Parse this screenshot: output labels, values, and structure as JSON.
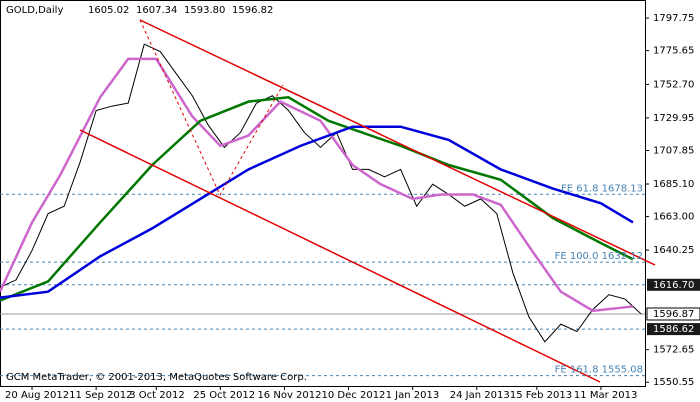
{
  "chart_data": {
    "type": "line",
    "title": "GOLD,Daily",
    "last_bar": [
      {
        "value": 1605.02,
        "label": "1605.02"
      },
      {
        "value": 1607.34,
        "label": "1607.34"
      },
      {
        "value": 1593.8,
        "label": "1593.80"
      },
      {
        "value": 1596.82,
        "label": "1596.82"
      }
    ],
    "footer": "GCM MetaTrader, © 2001-2013, MetaQuotes Software Corp.",
    "xlim": [
      0,
      161
    ],
    "xticks": [
      {
        "value": 8,
        "label": "20 Aug 2012"
      },
      {
        "value": 24,
        "label": "11 Sep 2012"
      },
      {
        "value": 39,
        "label": "3 Oct 2012"
      },
      {
        "value": 55,
        "label": "25 Oct 2012"
      },
      {
        "value": 71,
        "label": "16 Nov 2012"
      },
      {
        "value": 87,
        "label": "10 Dec 2012"
      },
      {
        "value": 103,
        "label": "1 Jan 2013"
      },
      {
        "value": 119,
        "label": "24 Jan 2013"
      },
      {
        "value": 134,
        "label": "15 Feb 2013"
      },
      {
        "value": 150,
        "label": "11 Mar 2013"
      }
    ],
    "ylim": [
      1548,
      1810
    ],
    "yticks": [
      1797.75,
      1775.65,
      {
        "value": 1752.7,
        "label": "1752.70"
      },
      1729.95,
      1707.85,
      {
        "value": 1685.1,
        "label": "1685.10"
      },
      {
        "value": 1663.0,
        "label": "1663.00"
      },
      1640.25,
      1572.65,
      1550.55
    ],
    "levels": [
      {
        "value": 1678.13,
        "label": "FE 61.8 1678.13"
      },
      {
        "value": 1632.12,
        "label": "FE 100.0 1632.12"
      },
      {
        "value": 1555.08,
        "label": "FE 161.8 1555.08"
      }
    ],
    "axis_levels": [
      {
        "value": 1616.7,
        "label": "1616.70"
      },
      1586.62
    ],
    "price_line": 1596.87,
    "series": [
      {
        "color": "#000000",
        "x": [
          0,
          4,
          8,
          12,
          16,
          20,
          24,
          28,
          32,
          36,
          40,
          44,
          48,
          52,
          56,
          60,
          64,
          68,
          72,
          76,
          80,
          84,
          88,
          92,
          96,
          100,
          104,
          108,
          112,
          116,
          120,
          124,
          128,
          132,
          136,
          140,
          144,
          148,
          152,
          156,
          160
        ],
        "values": [
          1615,
          1620,
          1640,
          1665,
          1670,
          1700,
          1735,
          1738,
          1740,
          1780,
          1775,
          1760,
          1745,
          1725,
          1710,
          1720,
          1740,
          1745,
          1735,
          1720,
          1710,
          1720,
          1695,
          1695,
          1690,
          1695,
          1670,
          1685,
          1678,
          1670,
          1675,
          1665,
          1625,
          1595,
          1578,
          1590,
          1585,
          1600,
          1610,
          1607,
          1597
        ]
      },
      {
        "color": "#cc66cc",
        "x": [
          0,
          8,
          15,
          25,
          32,
          39,
          48,
          55,
          62,
          70,
          80,
          88,
          95,
          103,
          110,
          118,
          125,
          133,
          140,
          148,
          158
        ],
        "values": [
          1612,
          1659,
          1691,
          1744,
          1770,
          1770,
          1731,
          1711,
          1718,
          1741,
          1728,
          1698,
          1685,
          1675,
          1678,
          1678,
          1671,
          1639,
          1612,
          1599,
          1602
        ]
      },
      {
        "color": "#007700",
        "x": [
          0,
          12,
          25,
          38,
          50,
          62,
          72,
          82,
          100,
          112,
          125,
          138,
          150,
          158
        ],
        "values": [
          1606,
          1619,
          1659,
          1698,
          1728,
          1741,
          1744,
          1728,
          1711,
          1698,
          1688,
          1662,
          1645,
          1634
        ]
      },
      {
        "color": "#0000dd",
        "x": [
          0,
          12,
          25,
          38,
          50,
          62,
          75,
          88,
          100,
          112,
          125,
          138,
          150,
          158
        ],
        "values": [
          1608,
          1612,
          1636,
          1655,
          1675,
          1695,
          1711,
          1724,
          1724,
          1715,
          1695,
          1682,
          1672,
          1659
        ]
      }
    ]
  }
}
